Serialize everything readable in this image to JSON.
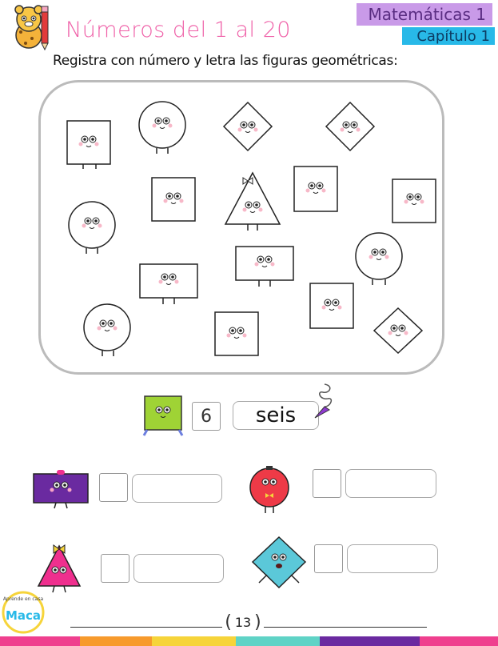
{
  "header": {
    "title": "Números del 1 al 20",
    "subject": "Matemáticas 1",
    "chapter": "Capítulo 1"
  },
  "instruction": "Registra con número y letra las figuras geométricas:",
  "example": {
    "number": "6",
    "word": "seis"
  },
  "logo": {
    "text": "Maca",
    "ring_text": "Aprende en casa"
  },
  "footer": {
    "page_number": "13"
  },
  "colors": {
    "title": "#ef5fa7",
    "subject_bg": "#c99ae8",
    "chapter_bg": "#28b9e8",
    "example_square": "#9fd335",
    "rectangle": "#6a2aa0",
    "circle": "#ee3a47",
    "triangle": "#ef2f8e",
    "rhombus": "#5bc8d9"
  }
}
